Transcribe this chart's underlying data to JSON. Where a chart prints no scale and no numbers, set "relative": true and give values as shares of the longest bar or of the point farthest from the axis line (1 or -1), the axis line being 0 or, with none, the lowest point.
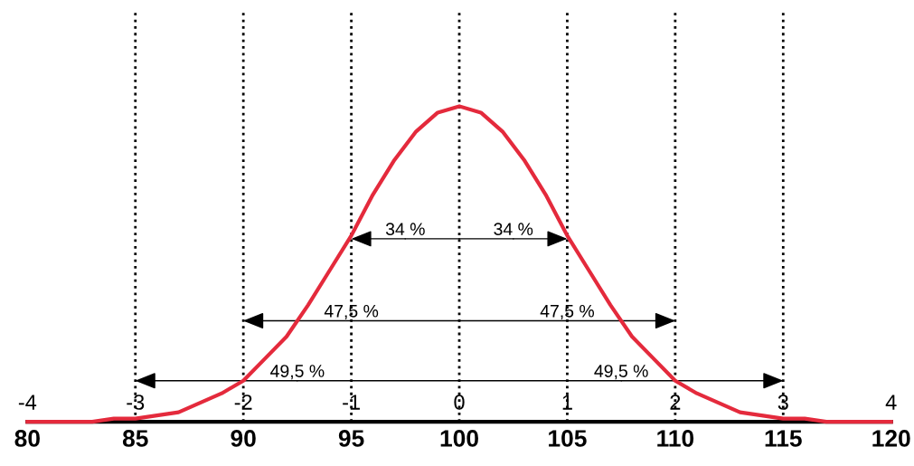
{
  "chart_data": {
    "type": "line",
    "relative": true,
    "x": [
      80,
      81,
      82,
      83,
      84,
      85,
      86,
      87,
      88,
      89,
      90,
      91,
      92,
      93,
      94,
      95,
      96,
      97,
      98,
      99,
      100,
      101,
      102,
      103,
      104,
      105,
      106,
      107,
      108,
      109,
      110,
      111,
      112,
      113,
      114,
      115,
      116,
      117,
      118,
      119,
      120
    ],
    "series": [
      {
        "color": "#e42a3c",
        "values": [
          0,
          0,
          0,
          0,
          0.01,
          0.01,
          0.02,
          0.03,
          0.06,
          0.09,
          0.13,
          0.2,
          0.27,
          0.37,
          0.48,
          0.59,
          0.72,
          0.83,
          0.92,
          0.98,
          1,
          0.98,
          0.92,
          0.83,
          0.72,
          0.59,
          0.48,
          0.37,
          0.27,
          0.2,
          0.13,
          0.09,
          0.06,
          0.03,
          0.02,
          0.01,
          0.01,
          0,
          0,
          0,
          0
        ]
      }
    ],
    "xlim": [
      80,
      120
    ],
    "xticks": [
      80,
      85,
      90,
      95,
      100,
      105,
      110,
      115,
      120
    ],
    "x2lim": [
      -4,
      4
    ],
    "x2ticks": [
      {
        "value": -4,
        "label": "-4"
      },
      {
        "value": -3,
        "label": "-3"
      },
      {
        "value": -2,
        "label": "-2"
      },
      {
        "value": -1,
        "label": "-1"
      },
      0,
      1,
      2,
      3,
      4
    ],
    "tick_labels": "x",
    "grid": false,
    "legend": false,
    "line_style": "solid",
    "marker": "none",
    "ref_lines": [
      {
        "axis": "x",
        "value": 85,
        "line_style": "dotted",
        "color": "#000000"
      },
      {
        "axis": "x",
        "value": 90,
        "line_style": "dotted",
        "color": "#000000"
      },
      {
        "axis": "x",
        "value": 95,
        "line_style": "dotted",
        "color": "#000000"
      },
      {
        "axis": "x",
        "value": 100,
        "line_style": "dotted",
        "color": "#000000"
      },
      {
        "axis": "x",
        "value": 105,
        "line_style": "dotted",
        "color": "#000000"
      },
      {
        "axis": "x",
        "value": 110,
        "line_style": "dotted",
        "color": "#000000"
      },
      {
        "axis": "x",
        "value": 115,
        "line_style": "dotted",
        "color": "#000000"
      }
    ],
    "annotations": [
      {
        "text": "34 %",
        "x": 95,
        "y": 0.58
      },
      {
        "text": "34 %",
        "x": 105,
        "y": 0.58
      },
      {
        "text": "47,5 %",
        "x": 90,
        "y": 0.32
      },
      {
        "text": "47,5 %",
        "x": 110,
        "y": 0.32
      },
      {
        "text": "49,5 %",
        "x": 85,
        "y": 0.13
      },
      {
        "text": "49,5 %",
        "x": 115,
        "y": 0.13
      }
    ]
  }
}
